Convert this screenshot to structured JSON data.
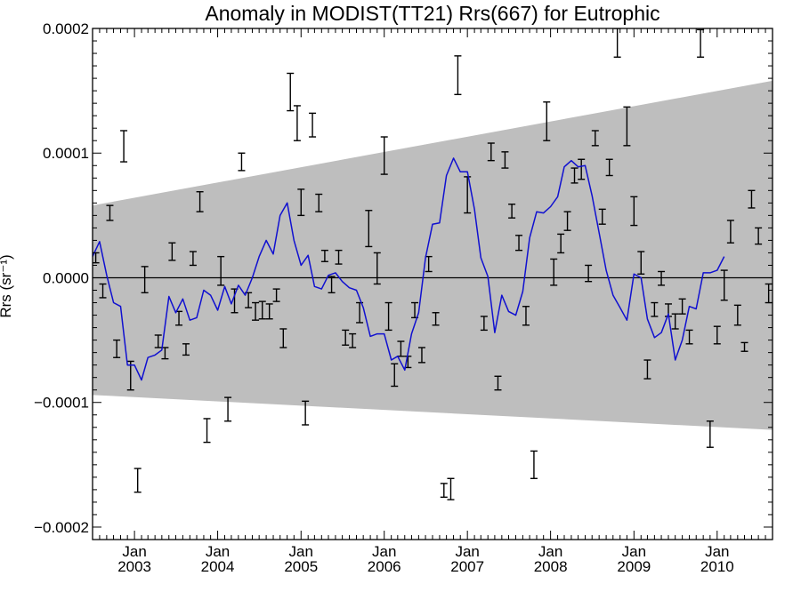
{
  "chart_data": {
    "type": "line",
    "title": "Anomaly in MODIST(TT21) Rrs(667) for Eutrophic",
    "ylabel": "Rrs (sr⁻¹)",
    "xlim": [
      "2002-07-01",
      "2010-09-01"
    ],
    "ylim": [
      -0.00021,
      0.0002
    ],
    "y_ticks": [
      -0.0002,
      -0.0001,
      0.0,
      0.0001,
      0.0002
    ],
    "y_tick_labels": [
      "−0.0002",
      "−0.0001",
      "0.0000",
      "0.0001",
      "0.0002"
    ],
    "x_ticks": [
      {
        "date": "2003-01-01",
        "month": "Jan",
        "year": "2003"
      },
      {
        "date": "2004-01-01",
        "month": "Jan",
        "year": "2004"
      },
      {
        "date": "2005-01-01",
        "month": "Jan",
        "year": "2005"
      },
      {
        "date": "2006-01-01",
        "month": "Jan",
        "year": "2006"
      },
      {
        "date": "2007-01-01",
        "month": "Jan",
        "year": "2007"
      },
      {
        "date": "2008-01-01",
        "month": "Jan",
        "year": "2008"
      },
      {
        "date": "2009-01-01",
        "month": "Jan",
        "year": "2009"
      },
      {
        "date": "2010-01-01",
        "month": "Jan",
        "year": "2010"
      }
    ],
    "zero_line": 0.0,
    "band": {
      "start": {
        "date": "2002-07-01",
        "lower": -9.4e-05,
        "upper": 5.8e-05
      },
      "end": {
        "date": "2010-09-01",
        "lower": -0.000122,
        "upper": 0.000158
      },
      "color": "#bebebe"
    },
    "errorbars": [
      {
        "x": "2002-07-15",
        "lo": 1.2e-05,
        "hi": 2e-05
      },
      {
        "x": "2002-08-15",
        "lo": -1.6e-05,
        "hi": -5e-06
      },
      {
        "x": "2002-09-15",
        "lo": 4.6e-05,
        "hi": 5.8e-05
      },
      {
        "x": "2002-10-15",
        "lo": -6.4e-05,
        "hi": -5e-05
      },
      {
        "x": "2002-11-15",
        "lo": 9.3e-05,
        "hi": 0.000118
      },
      {
        "x": "2002-12-15",
        "lo": -9e-05,
        "hi": -6.7e-05
      },
      {
        "x": "2003-01-15",
        "lo": -0.000172,
        "hi": -0.000153
      },
      {
        "x": "2003-02-15",
        "lo": -1.2e-05,
        "hi": 9e-06
      },
      {
        "x": "2003-04-15",
        "lo": -5.6e-05,
        "hi": -4.6e-05
      },
      {
        "x": "2003-05-15",
        "lo": -6.5e-05,
        "hi": -5.6e-05
      },
      {
        "x": "2003-06-15",
        "lo": 1.4e-05,
        "hi": 2.8e-05
      },
      {
        "x": "2003-07-15",
        "lo": -3.8e-05,
        "hi": -2.7e-05
      },
      {
        "x": "2003-08-15",
        "lo": -6.2e-05,
        "hi": -5.3e-05
      },
      {
        "x": "2003-09-15",
        "lo": 1e-05,
        "hi": 2.1e-05
      },
      {
        "x": "2003-10-15",
        "lo": 5.3e-05,
        "hi": 6.9e-05
      },
      {
        "x": "2003-11-15",
        "lo": -0.000132,
        "hi": -0.000113
      },
      {
        "x": "2004-01-15",
        "lo": -6e-06,
        "hi": 1.7e-05
      },
      {
        "x": "2004-02-15",
        "lo": -0.000115,
        "hi": -9.6e-05
      },
      {
        "x": "2004-03-15",
        "lo": -2.8e-05,
        "hi": -9e-06
      },
      {
        "x": "2004-04-15",
        "lo": 8.6e-05,
        "hi": 0.0001
      },
      {
        "x": "2004-05-15",
        "lo": -2.4e-05,
        "hi": -1.2e-05
      },
      {
        "x": "2004-06-15",
        "lo": -3.4e-05,
        "hi": -2e-05
      },
      {
        "x": "2004-07-15",
        "lo": -3.3e-05,
        "hi": -1.9e-05
      },
      {
        "x": "2004-08-15",
        "lo": -3.3e-05,
        "hi": -2.1e-05
      },
      {
        "x": "2004-09-15",
        "lo": -1.9e-05,
        "hi": -9e-06
      },
      {
        "x": "2004-10-15",
        "lo": -5.6e-05,
        "hi": -4.1e-05
      },
      {
        "x": "2004-11-15",
        "lo": 0.000134,
        "hi": 0.000164
      },
      {
        "x": "2004-12-15",
        "lo": 0.00011,
        "hi": 0.000138
      },
      {
        "x": "2005-01-01",
        "lo": 5e-05,
        "hi": 7.1e-05
      },
      {
        "x": "2005-01-20",
        "lo": -0.000118,
        "hi": -9.9e-05
      },
      {
        "x": "2005-02-20",
        "lo": 0.000113,
        "hi": 0.000132
      },
      {
        "x": "2005-03-20",
        "lo": 5.3e-05,
        "hi": 6.7e-05
      },
      {
        "x": "2005-04-15",
        "lo": 1.3e-05,
        "hi": 2.2e-05
      },
      {
        "x": "2005-05-15",
        "lo": -1.2e-05,
        "hi": 1e-06
      },
      {
        "x": "2005-06-15",
        "lo": 1.1e-05,
        "hi": 2.2e-05
      },
      {
        "x": "2005-07-15",
        "lo": -5.4e-05,
        "hi": -4.2e-05
      },
      {
        "x": "2005-08-15",
        "lo": -5.6e-05,
        "hi": -4.5e-05
      },
      {
        "x": "2005-09-15",
        "lo": -3.6e-05,
        "hi": -2e-05
      },
      {
        "x": "2005-10-25",
        "lo": 2.5e-05,
        "hi": 5.4e-05
      },
      {
        "x": "2005-12-01",
        "lo": -5e-06,
        "hi": 2e-05
      },
      {
        "x": "2006-01-01",
        "lo": 8.3e-05,
        "hi": 0.000113
      },
      {
        "x": "2006-01-20",
        "lo": -4.2e-05,
        "hi": -2e-05
      },
      {
        "x": "2006-02-15",
        "lo": -8.7e-05,
        "hi": -6.9e-05
      },
      {
        "x": "2006-03-15",
        "lo": -6.3e-05,
        "hi": -5.1e-05
      },
      {
        "x": "2006-04-15",
        "lo": -7.2e-05,
        "hi": -6.3e-05
      },
      {
        "x": "2006-05-15",
        "lo": -3.2e-05,
        "hi": -2e-05
      },
      {
        "x": "2006-06-15",
        "lo": -6.8e-05,
        "hi": -5.6e-05
      },
      {
        "x": "2006-07-15",
        "lo": 5e-06,
        "hi": 1.7e-05
      },
      {
        "x": "2006-08-15",
        "lo": -3.8e-05,
        "hi": -2.8e-05
      },
      {
        "x": "2006-09-20",
        "lo": -0.000176,
        "hi": -0.000165
      },
      {
        "x": "2006-10-20",
        "lo": -0.000178,
        "hi": -0.000161
      },
      {
        "x": "2006-11-20",
        "lo": 0.000147,
        "hi": 0.000178
      },
      {
        "x": "2007-01-01",
        "lo": 5.2e-05,
        "hi": 8.1e-05
      },
      {
        "x": "2007-03-15",
        "lo": -4.2e-05,
        "hi": -3.1e-05
      },
      {
        "x": "2007-04-15",
        "lo": 9.4e-05,
        "hi": 0.000108
      },
      {
        "x": "2007-05-15",
        "lo": -9e-05,
        "hi": -7.9e-05
      },
      {
        "x": "2007-06-15",
        "lo": 8.8e-05,
        "hi": 0.000101
      },
      {
        "x": "2007-07-15",
        "lo": 4.8e-05,
        "hi": 5.9e-05
      },
      {
        "x": "2007-08-15",
        "lo": 2.2e-05,
        "hi": 3.4e-05
      },
      {
        "x": "2007-09-15",
        "lo": -3.8e-05,
        "hi": -2.3e-05
      },
      {
        "x": "2007-10-20",
        "lo": -0.000161,
        "hi": -0.000139
      },
      {
        "x": "2007-12-15",
        "lo": 0.00011,
        "hi": 0.000141
      },
      {
        "x": "2008-01-15",
        "lo": -6e-06,
        "hi": 1.5e-05
      },
      {
        "x": "2008-02-15",
        "lo": 2e-05,
        "hi": 3.5e-05
      },
      {
        "x": "2008-03-15",
        "lo": 3.8e-05,
        "hi": 5.3e-05
      },
      {
        "x": "2008-04-15",
        "lo": 7.6e-05,
        "hi": 8.8e-05
      },
      {
        "x": "2008-05-15",
        "lo": 7.9e-05,
        "hi": 9.5e-05
      },
      {
        "x": "2008-06-15",
        "lo": -3e-06,
        "hi": 1e-05
      },
      {
        "x": "2008-07-15",
        "lo": 0.000106,
        "hi": 0.000118
      },
      {
        "x": "2008-08-15",
        "lo": 4.3e-05,
        "hi": 5.5e-05
      },
      {
        "x": "2008-09-15",
        "lo": 8.2e-05,
        "hi": 9.5e-05
      },
      {
        "x": "2008-10-20",
        "lo": 0.000177,
        "hi": 0.0002
      },
      {
        "x": "2008-12-01",
        "lo": 0.000106,
        "hi": 0.000137
      },
      {
        "x": "2009-01-01",
        "lo": 4.2e-05,
        "hi": 6.5e-05
      },
      {
        "x": "2009-02-01",
        "lo": 3e-06,
        "hi": 2.1e-05
      },
      {
        "x": "2009-03-01",
        "lo": -8.1e-05,
        "hi": -6.6e-05
      },
      {
        "x": "2009-04-01",
        "lo": -3.1e-05,
        "hi": -2e-05
      },
      {
        "x": "2009-05-01",
        "lo": -6e-06,
        "hi": 5e-06
      },
      {
        "x": "2009-06-01",
        "lo": -3.1e-05,
        "hi": -2.1e-05
      },
      {
        "x": "2009-07-01",
        "lo": -4.1e-05,
        "hi": -2.9e-05
      },
      {
        "x": "2009-08-01",
        "lo": -2.9e-05,
        "hi": -1.7e-05
      },
      {
        "x": "2009-09-01",
        "lo": -5.3e-05,
        "hi": -4.2e-05
      },
      {
        "x": "2009-10-20",
        "lo": 0.000177,
        "hi": 0.000199
      },
      {
        "x": "2009-12-01",
        "lo": -0.000136,
        "hi": -0.000115
      },
      {
        "x": "2010-01-01",
        "lo": -5.3e-05,
        "hi": -3.9e-05
      },
      {
        "x": "2010-02-01",
        "lo": -1.8e-05,
        "hi": 6e-06
      },
      {
        "x": "2010-03-01",
        "lo": 2.8e-05,
        "hi": 4.6e-05
      },
      {
        "x": "2010-04-01",
        "lo": -3.8e-05,
        "hi": -2.2e-05
      },
      {
        "x": "2010-05-01",
        "lo": -5.9e-05,
        "hi": -5.2e-05
      },
      {
        "x": "2010-06-01",
        "lo": 5.6e-05,
        "hi": 7e-05
      },
      {
        "x": "2010-07-01",
        "lo": 2.7e-05,
        "hi": 4e-05
      },
      {
        "x": "2010-08-15",
        "lo": -2e-05,
        "hi": -5e-06
      }
    ],
    "line": {
      "color": "#1010d0",
      "points": [
        [
          "2002-07-01",
          1.7e-05
        ],
        [
          "2002-08-01",
          2.9e-05
        ],
        [
          "2002-09-01",
          2e-06
        ],
        [
          "2002-10-01",
          -2e-05
        ],
        [
          "2002-11-01",
          -2.3e-05
        ],
        [
          "2002-12-01",
          -7e-05
        ],
        [
          "2003-01-01",
          -7e-05
        ],
        [
          "2003-02-01",
          -8.2e-05
        ],
        [
          "2003-03-01",
          -6.4e-05
        ],
        [
          "2003-04-01",
          -6.2e-05
        ],
        [
          "2003-05-01",
          -5.8e-05
        ],
        [
          "2003-06-01",
          -1.5e-05
        ],
        [
          "2003-07-01",
          -2.8e-05
        ],
        [
          "2003-08-01",
          -1.7e-05
        ],
        [
          "2003-09-01",
          -3.4e-05
        ],
        [
          "2003-10-01",
          -3.2e-05
        ],
        [
          "2003-11-01",
          -1e-05
        ],
        [
          "2003-12-01",
          -1.4e-05
        ],
        [
          "2004-01-01",
          -2.6e-05
        ],
        [
          "2004-02-01",
          -7e-06
        ],
        [
          "2004-03-01",
          -2.1e-05
        ],
        [
          "2004-04-01",
          -6e-06
        ],
        [
          "2004-05-01",
          -1.4e-05
        ],
        [
          "2004-06-01",
          0.0
        ],
        [
          "2004-07-01",
          1.7e-05
        ],
        [
          "2004-08-01",
          3e-05
        ],
        [
          "2004-09-01",
          1.9e-05
        ],
        [
          "2004-10-01",
          5e-05
        ],
        [
          "2004-11-01",
          6e-05
        ],
        [
          "2004-12-01",
          3e-05
        ],
        [
          "2005-01-01",
          1e-05
        ],
        [
          "2005-02-01",
          1.8e-05
        ],
        [
          "2005-03-01",
          -7e-06
        ],
        [
          "2005-04-01",
          -9e-06
        ],
        [
          "2005-05-01",
          2e-06
        ],
        [
          "2005-06-01",
          4e-06
        ],
        [
          "2005-07-01",
          -3e-06
        ],
        [
          "2005-08-01",
          -8e-06
        ],
        [
          "2005-09-01",
          -1e-05
        ],
        [
          "2005-10-01",
          -2.4e-05
        ],
        [
          "2005-11-01",
          -4.7e-05
        ],
        [
          "2005-12-01",
          -4.5e-05
        ],
        [
          "2006-01-01",
          -4.5e-05
        ],
        [
          "2006-02-01",
          -6.6e-05
        ],
        [
          "2006-03-01",
          -6.3e-05
        ],
        [
          "2006-04-01",
          -7.4e-05
        ],
        [
          "2006-05-01",
          -4.5e-05
        ],
        [
          "2006-06-01",
          -2.8e-05
        ],
        [
          "2006-07-01",
          1.6e-05
        ],
        [
          "2006-08-01",
          4.3e-05
        ],
        [
          "2006-09-01",
          4.4e-05
        ],
        [
          "2006-10-01",
          8.2e-05
        ],
        [
          "2006-11-01",
          9.6e-05
        ],
        [
          "2006-12-01",
          8.5e-05
        ],
        [
          "2007-01-01",
          8.5e-05
        ],
        [
          "2007-02-01",
          5.5e-05
        ],
        [
          "2007-03-01",
          1.6e-05
        ],
        [
          "2007-04-01",
          1e-06
        ],
        [
          "2007-05-01",
          -4.4e-05
        ],
        [
          "2007-06-01",
          -1.4e-05
        ],
        [
          "2007-07-01",
          -2.7e-05
        ],
        [
          "2007-08-01",
          -3e-05
        ],
        [
          "2007-09-01",
          -1.1e-05
        ],
        [
          "2007-10-01",
          3.2e-05
        ],
        [
          "2007-11-01",
          5.3e-05
        ],
        [
          "2007-12-01",
          5.2e-05
        ],
        [
          "2008-01-01",
          5.7e-05
        ],
        [
          "2008-02-01",
          6.5e-05
        ],
        [
          "2008-03-01",
          8.9e-05
        ],
        [
          "2008-04-01",
          9.4e-05
        ],
        [
          "2008-05-01",
          8.9e-05
        ],
        [
          "2008-06-01",
          9e-05
        ],
        [
          "2008-07-01",
          6.6e-05
        ],
        [
          "2008-08-01",
          3.6e-05
        ],
        [
          "2008-09-01",
          6e-06
        ],
        [
          "2008-10-01",
          -1.4e-05
        ],
        [
          "2008-11-01",
          -2.4e-05
        ],
        [
          "2008-12-01",
          -3.4e-05
        ],
        [
          "2009-01-01",
          3e-06
        ],
        [
          "2009-02-01",
          0.0
        ],
        [
          "2009-03-01",
          -3.3e-05
        ],
        [
          "2009-04-01",
          -4.8e-05
        ],
        [
          "2009-05-01",
          -4.4e-05
        ],
        [
          "2009-06-01",
          -2.9e-05
        ],
        [
          "2009-07-01",
          -6.6e-05
        ],
        [
          "2009-08-01",
          -5e-05
        ],
        [
          "2009-09-01",
          -2.3e-05
        ],
        [
          "2009-10-01",
          -2.5e-05
        ],
        [
          "2009-11-01",
          4e-06
        ],
        [
          "2009-12-01",
          4e-06
        ],
        [
          "2010-01-01",
          6e-06
        ],
        [
          "2010-02-01",
          1.7e-05
        ]
      ]
    }
  }
}
